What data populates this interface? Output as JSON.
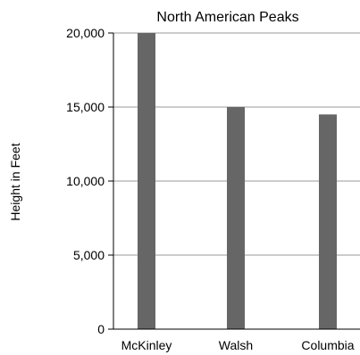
{
  "chart_data": {
    "type": "bar",
    "title": "North American Peaks",
    "xlabel": "",
    "ylabel": "Height in Feet",
    "categories": [
      "McKinley",
      "Walsh",
      "Columbia"
    ],
    "values": [
      20000,
      15000,
      14500
    ],
    "ylim": [
      0,
      20000
    ],
    "yticks": [
      0,
      5000,
      10000,
      15000,
      20000
    ],
    "ytick_labels": [
      "0",
      "5,000",
      "10,000",
      "15,000",
      "20,000"
    ],
    "grid": true,
    "legend": "none",
    "colors": {
      "bar": "#666666",
      "gridline": "#9a9a9a",
      "axis": "#000000",
      "text": "#000000"
    }
  }
}
